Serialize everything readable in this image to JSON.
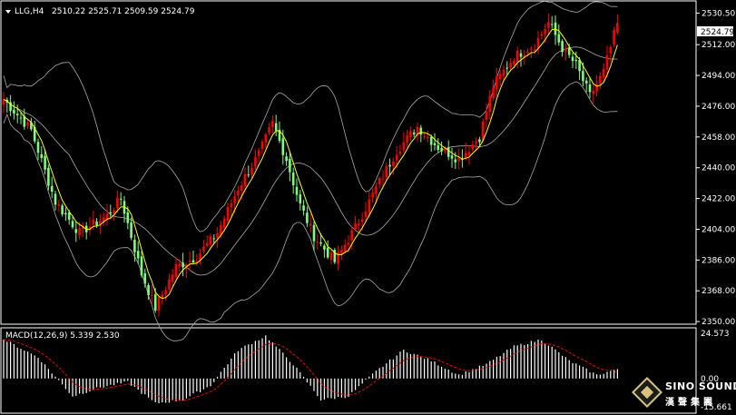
{
  "header": {
    "symbol_timeframe": "LLG,H4",
    "ohlc": "2510.22 2525.71 2509.59 2524.79"
  },
  "colors": {
    "up": "#ff0000",
    "down": "#7cfc7c",
    "ma": "#ffff00",
    "bollinger": "#a9a9a9",
    "macd_hist": "#ffffff",
    "macd_signal": "#ff0000",
    "background": "#000000",
    "grid_border": "#ffffff"
  },
  "price_labels": [
    "2530.50",
    "2512.00",
    "2494.00",
    "2476.00",
    "2458.00",
    "2440.00",
    "2422.00",
    "2404.00",
    "2386.00",
    "2368.00",
    "2350.00"
  ],
  "current_price_label": "2524.79",
  "macd": {
    "title": "MACD(12,26,9) 5.339 2.530",
    "labels": [
      "24.573",
      "0.00",
      "-15.661"
    ]
  },
  "watermark": {
    "name": "SINO SOUND",
    "sub": "漢聲集團"
  },
  "chart_data": [
    {
      "type": "candlestick",
      "title": "LLG,H4",
      "y_ticks": [
        2350,
        2368,
        2386,
        2404,
        2422,
        2440,
        2458,
        2476,
        2494,
        2512,
        2530.5
      ],
      "ylim": [
        2349,
        2536
      ],
      "last": 2524.79,
      "indicators": [
        "moving average",
        "Bollinger Bands"
      ],
      "anchors": [
        {
          "i": 0,
          "close": 2480
        },
        {
          "i": 8,
          "close": 2462
        },
        {
          "i": 15,
          "close": 2420
        },
        {
          "i": 22,
          "close": 2402
        },
        {
          "i": 30,
          "close": 2412
        },
        {
          "i": 34,
          "close": 2422
        },
        {
          "i": 40,
          "close": 2378
        },
        {
          "i": 44,
          "close": 2358
        },
        {
          "i": 50,
          "close": 2382
        },
        {
          "i": 56,
          "close": 2388
        },
        {
          "i": 62,
          "close": 2402
        },
        {
          "i": 68,
          "close": 2428
        },
        {
          "i": 74,
          "close": 2448
        },
        {
          "i": 78,
          "close": 2466
        },
        {
          "i": 82,
          "close": 2445
        },
        {
          "i": 86,
          "close": 2418
        },
        {
          "i": 90,
          "close": 2400
        },
        {
          "i": 96,
          "close": 2385
        },
        {
          "i": 102,
          "close": 2405
        },
        {
          "i": 108,
          "close": 2428
        },
        {
          "i": 114,
          "close": 2450
        },
        {
          "i": 120,
          "close": 2464
        },
        {
          "i": 126,
          "close": 2452
        },
        {
          "i": 132,
          "close": 2445
        },
        {
          "i": 138,
          "close": 2458
        },
        {
          "i": 142,
          "close": 2488
        },
        {
          "i": 148,
          "close": 2505
        },
        {
          "i": 154,
          "close": 2512
        },
        {
          "i": 158,
          "close": 2525
        },
        {
          "i": 162,
          "close": 2510
        },
        {
          "i": 166,
          "close": 2500
        },
        {
          "i": 170,
          "close": 2482
        },
        {
          "i": 174,
          "close": 2496
        },
        {
          "i": 178,
          "close": 2524.79
        }
      ]
    },
    {
      "type": "line",
      "title": "MACD(12,26,9)",
      "values_text": "5.339 2.530",
      "y_ticks": [
        24.573,
        0.0,
        -15.661
      ],
      "ylim": [
        -18,
        27
      ],
      "histogram_anchors": [
        {
          "i": 0,
          "v": 22
        },
        {
          "i": 10,
          "v": 12
        },
        {
          "i": 20,
          "v": -10
        },
        {
          "i": 28,
          "v": -5
        },
        {
          "i": 36,
          "v": -2
        },
        {
          "i": 44,
          "v": -14
        },
        {
          "i": 52,
          "v": -12
        },
        {
          "i": 60,
          "v": -4
        },
        {
          "i": 68,
          "v": 16
        },
        {
          "i": 76,
          "v": 24
        },
        {
          "i": 84,
          "v": 8
        },
        {
          "i": 92,
          "v": -12
        },
        {
          "i": 100,
          "v": -10
        },
        {
          "i": 108,
          "v": 4
        },
        {
          "i": 116,
          "v": 16
        },
        {
          "i": 124,
          "v": 10
        },
        {
          "i": 132,
          "v": 2
        },
        {
          "i": 140,
          "v": 8
        },
        {
          "i": 148,
          "v": 18
        },
        {
          "i": 156,
          "v": 22
        },
        {
          "i": 164,
          "v": 10
        },
        {
          "i": 172,
          "v": 2
        },
        {
          "i": 178,
          "v": 5.339
        }
      ],
      "signal_last": 2.53
    }
  ]
}
